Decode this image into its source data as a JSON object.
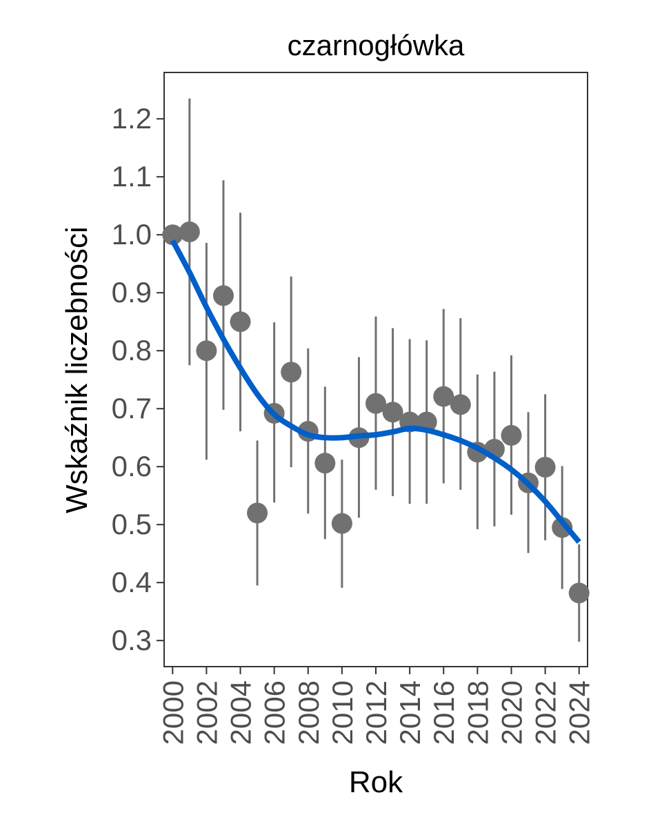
{
  "chart_data": {
    "type": "scatter",
    "title": "czarnogłówka",
    "xlabel": "Rok",
    "ylabel": "Wskaźnik liczebności",
    "xlim": [
      1999.5,
      2024.5
    ],
    "ylim": [
      0.255,
      1.28
    ],
    "x_ticks": [
      2000,
      2002,
      2004,
      2006,
      2008,
      2010,
      2012,
      2014,
      2016,
      2018,
      2020,
      2022,
      2024
    ],
    "x_tick_labels": [
      "2000",
      "2002",
      "2004",
      "2006",
      "2008",
      "2010",
      "2012",
      "2014",
      "2016",
      "2018",
      "2020",
      "2022",
      "2024"
    ],
    "y_ticks": [
      0.3,
      0.4,
      0.5,
      0.6,
      0.7,
      0.8,
      0.9,
      1.0,
      1.1,
      1.2
    ],
    "y_tick_labels": [
      "0.3",
      "0.4",
      "0.5",
      "0.6",
      "0.7",
      "0.8",
      "0.9",
      "1.0",
      "1.1",
      "1.2"
    ],
    "points": [
      {
        "x": 2000,
        "y": 1.0,
        "lo": 1.0,
        "hi": 1.0
      },
      {
        "x": 2001,
        "y": 1.005,
        "lo": 0.775,
        "hi": 1.235
      },
      {
        "x": 2002,
        "y": 0.8,
        "lo": 0.612,
        "hi": 0.986
      },
      {
        "x": 2003,
        "y": 0.895,
        "lo": 0.698,
        "hi": 1.094
      },
      {
        "x": 2004,
        "y": 0.85,
        "lo": 0.661,
        "hi": 1.038
      },
      {
        "x": 2005,
        "y": 0.52,
        "lo": 0.395,
        "hi": 0.645
      },
      {
        "x": 2006,
        "y": 0.692,
        "lo": 0.538,
        "hi": 0.849
      },
      {
        "x": 2007,
        "y": 0.763,
        "lo": 0.599,
        "hi": 0.928
      },
      {
        "x": 2008,
        "y": 0.661,
        "lo": 0.519,
        "hi": 0.804
      },
      {
        "x": 2009,
        "y": 0.606,
        "lo": 0.475,
        "hi": 0.738
      },
      {
        "x": 2010,
        "y": 0.502,
        "lo": 0.391,
        "hi": 0.612
      },
      {
        "x": 2011,
        "y": 0.65,
        "lo": 0.512,
        "hi": 0.789
      },
      {
        "x": 2012,
        "y": 0.709,
        "lo": 0.56,
        "hi": 0.859
      },
      {
        "x": 2013,
        "y": 0.694,
        "lo": 0.549,
        "hi": 0.839
      },
      {
        "x": 2014,
        "y": 0.677,
        "lo": 0.536,
        "hi": 0.82
      },
      {
        "x": 2015,
        "y": 0.677,
        "lo": 0.536,
        "hi": 0.818
      },
      {
        "x": 2016,
        "y": 0.721,
        "lo": 0.571,
        "hi": 0.872
      },
      {
        "x": 2017,
        "y": 0.707,
        "lo": 0.56,
        "hi": 0.856
      },
      {
        "x": 2018,
        "y": 0.625,
        "lo": 0.492,
        "hi": 0.759
      },
      {
        "x": 2019,
        "y": 0.63,
        "lo": 0.497,
        "hi": 0.764
      },
      {
        "x": 2020,
        "y": 0.654,
        "lo": 0.517,
        "hi": 0.792
      },
      {
        "x": 2021,
        "y": 0.572,
        "lo": 0.451,
        "hi": 0.694
      },
      {
        "x": 2022,
        "y": 0.599,
        "lo": 0.473,
        "hi": 0.725
      },
      {
        "x": 2023,
        "y": 0.495,
        "lo": 0.389,
        "hi": 0.601
      },
      {
        "x": 2024,
        "y": 0.382,
        "lo": 0.298,
        "hi": 0.466
      }
    ],
    "trend": {
      "x": [
        2000,
        2001,
        2002,
        2003,
        2004,
        2005,
        2006,
        2007,
        2008,
        2009,
        2010,
        2011,
        2012,
        2013,
        2014,
        2015,
        2016,
        2017,
        2018,
        2019,
        2020,
        2021,
        2022,
        2023,
        2024
      ],
      "y": [
        0.99,
        0.935,
        0.875,
        0.82,
        0.77,
        0.725,
        0.69,
        0.67,
        0.655,
        0.65,
        0.65,
        0.653,
        0.655,
        0.66,
        0.666,
        0.663,
        0.655,
        0.645,
        0.632,
        0.615,
        0.595,
        0.57,
        0.54,
        0.505,
        0.47
      ]
    },
    "colors": {
      "points": "#717171",
      "errorbars": "#717171",
      "trend": "#005fc8",
      "axis": "#333333",
      "tick_label": "#4d4d4d",
      "text": "#000000"
    }
  }
}
